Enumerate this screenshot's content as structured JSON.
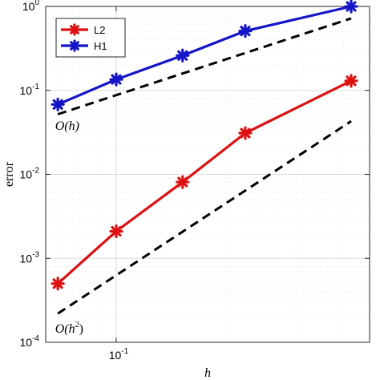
{
  "chart_data": {
    "type": "line",
    "xscale": "log",
    "yscale": "log",
    "xlim": [
      0.065,
      0.47
    ],
    "ylim": [
      0.0001,
      1
    ],
    "xlabel": "h",
    "ylabel": "error",
    "grid": true,
    "minor_grid": true,
    "legend_position": "top-left",
    "x_ticks": [
      {
        "value": 0.1,
        "label": "10",
        "exp": "-1"
      }
    ],
    "y_ticks": [
      {
        "value": 0.0001,
        "label": "10",
        "exp": "-4"
      },
      {
        "value": 0.001,
        "label": "10",
        "exp": "-3"
      },
      {
        "value": 0.01,
        "label": "10",
        "exp": "-2"
      },
      {
        "value": 0.1,
        "label": "10",
        "exp": "-1"
      },
      {
        "value": 1,
        "label": "10",
        "exp": "0"
      }
    ],
    "x": [
      0.07,
      0.1,
      0.15,
      0.22,
      0.42
    ],
    "series": [
      {
        "name": "L2",
        "color": "#dd1111",
        "marker": "asterisk",
        "values": [
          0.0005,
          0.0021,
          0.0081,
          0.031,
          0.13
        ]
      },
      {
        "name": "H1",
        "color": "#1515c8",
        "marker": "asterisk",
        "values": [
          0.068,
          0.135,
          0.26,
          0.51,
          1.0
        ]
      }
    ],
    "reference_lines": [
      {
        "label": "O(h)",
        "color": "#000000",
        "style": "dashed",
        "x": [
          0.07,
          0.42
        ],
        "y": [
          0.052,
          0.72
        ]
      },
      {
        "label": "O(h²)",
        "color": "#000000",
        "style": "dashed",
        "x": [
          0.07,
          0.42
        ],
        "y": [
          0.00022,
          0.043
        ]
      }
    ],
    "annotations": [
      {
        "text": "O(h)",
        "base": "O(h)",
        "exp": "",
        "x": 0.073,
        "y": 0.034
      },
      {
        "text": "O(h²)",
        "base": "O(h",
        "exp": "2",
        "close": ")",
        "x": 0.073,
        "y": 0.00013
      }
    ]
  }
}
